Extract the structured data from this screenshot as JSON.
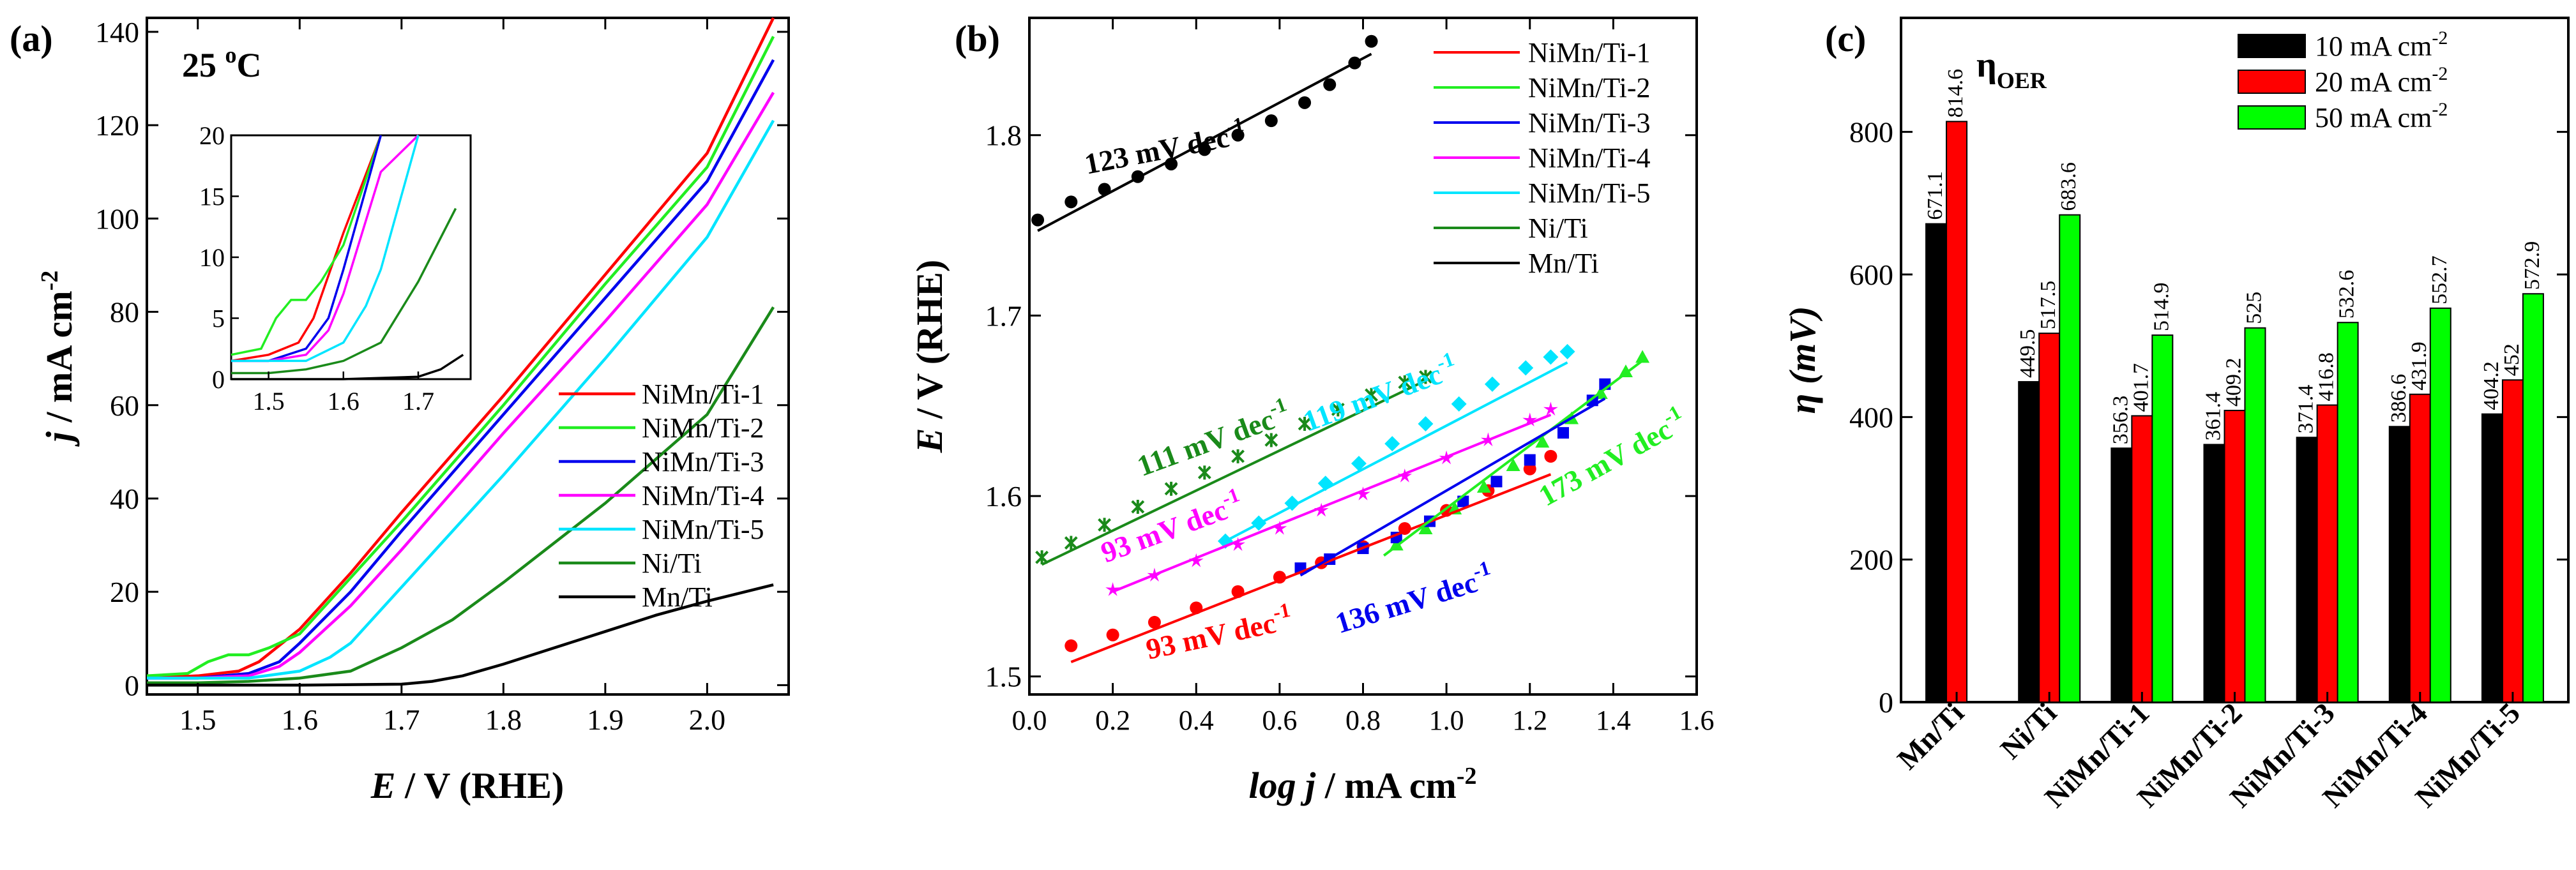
{
  "chart_data": [
    {
      "type": "line",
      "panel_label": "(a)",
      "annotation": {
        "base": "25 ",
        "sup": "o",
        "unit": "C"
      },
      "xlabel": {
        "italic": "E",
        "rest": " / V (RHE)"
      },
      "ylabel": {
        "italic": "j",
        "rest": " / mA cm",
        "sup": "-2"
      },
      "xlim": [
        1.45,
        2.08
      ],
      "ylim": [
        -2,
        143
      ],
      "xticks": [
        1.5,
        1.6,
        1.7,
        1.8,
        1.9,
        2.0
      ],
      "xtick_labels": [
        "1.5",
        "1.6",
        "1.7",
        "1.8",
        "1.9",
        "2.0"
      ],
      "yticks": [
        0,
        20,
        40,
        60,
        80,
        100,
        120,
        140
      ],
      "ytick_labels": [
        "0",
        "20",
        "40",
        "60",
        "80",
        "100",
        "120",
        "140"
      ],
      "legend_position": "bottom-right",
      "series": [
        {
          "name": "NiMn/Ti-1",
          "color": "#ff0000",
          "x": [
            1.45,
            1.5,
            1.54,
            1.56,
            1.6,
            1.65,
            1.7,
            1.8,
            1.9,
            2.0,
            2.065
          ],
          "y": [
            1.5,
            2,
            3,
            5,
            12,
            24,
            37,
            62,
            88,
            114,
            143
          ]
        },
        {
          "name": "NiMn/Ti-2",
          "color": "#22ee22",
          "x": [
            1.45,
            1.49,
            1.51,
            1.53,
            1.55,
            1.57,
            1.6,
            1.65,
            1.7,
            1.8,
            1.9,
            2.0,
            2.065
          ],
          "y": [
            2,
            2.5,
            5,
            6.5,
            6.5,
            8,
            11,
            23,
            35,
            60,
            86,
            111,
            139
          ]
        },
        {
          "name": "NiMn/Ti-3",
          "color": "#0000ee",
          "x": [
            1.45,
            1.5,
            1.55,
            1.58,
            1.6,
            1.65,
            1.7,
            1.8,
            1.9,
            2.0,
            2.065
          ],
          "y": [
            1.5,
            1.5,
            2.5,
            5,
            9,
            20,
            33,
            58,
            83,
            108,
            134
          ]
        },
        {
          "name": "NiMn/Ti-4",
          "color": "#ff00ff",
          "x": [
            1.45,
            1.5,
            1.55,
            1.58,
            1.6,
            1.65,
            1.7,
            1.8,
            1.9,
            2.0,
            2.065
          ],
          "y": [
            1.5,
            1.5,
            2,
            4,
            7,
            17,
            29,
            54,
            78,
            103,
            127
          ]
        },
        {
          "name": "NiMn/Ti-5",
          "color": "#00e5ff",
          "x": [
            1.45,
            1.5,
            1.55,
            1.6,
            1.63,
            1.65,
            1.7,
            1.8,
            1.9,
            2.0,
            2.065
          ],
          "y": [
            1.5,
            1.5,
            1.5,
            3,
            6,
            9,
            21,
            45,
            70,
            96,
            121
          ]
        },
        {
          "name": "Ni/Ti",
          "color": "#1a8a1a",
          "x": [
            1.45,
            1.5,
            1.55,
            1.6,
            1.65,
            1.7,
            1.75,
            1.8,
            1.9,
            2.0,
            2.065
          ],
          "y": [
            0.5,
            0.5,
            0.8,
            1.5,
            3,
            8,
            14,
            22,
            39,
            58,
            81
          ]
        },
        {
          "name": "Mn/Ti",
          "color": "#000000",
          "x": [
            1.45,
            1.6,
            1.7,
            1.73,
            1.76,
            1.8,
            1.85,
            1.9,
            1.95,
            2.0,
            2.065
          ],
          "y": [
            0,
            0,
            0.2,
            0.8,
            2,
            4.5,
            8,
            11.5,
            15,
            18,
            21.5
          ]
        }
      ],
      "inset": {
        "xlim": [
          1.45,
          1.77
        ],
        "ylim": [
          0,
          20
        ],
        "xticks": [
          1.5,
          1.6,
          1.7
        ],
        "xtick_labels": [
          "1.5",
          "1.6",
          "1.7"
        ],
        "yticks": [
          0,
          5,
          10,
          15,
          20
        ],
        "ytick_labels": [
          "0",
          "5",
          "10",
          "15",
          "20"
        ]
      }
    },
    {
      "type": "scatter",
      "panel_label": "(b)",
      "xlabel": {
        "italic": "log j",
        "rest": " / mA cm",
        "sup": "-2"
      },
      "ylabel": {
        "italic": "E",
        "rest": " / V (RHE)"
      },
      "xlim": [
        0.0,
        1.6
      ],
      "ylim": [
        1.49,
        1.865
      ],
      "xticks": [
        0.0,
        0.2,
        0.4,
        0.6,
        0.8,
        1.0,
        1.2,
        1.4,
        1.6
      ],
      "xtick_labels": [
        "0.0",
        "0.2",
        "0.4",
        "0.6",
        "0.8",
        "1.0",
        "1.2",
        "1.4",
        "1.6"
      ],
      "yticks": [
        1.5,
        1.6,
        1.7,
        1.8
      ],
      "ytick_labels": [
        "1.5",
        "1.6",
        "1.7",
        "1.8"
      ],
      "legend_position": "top-right",
      "legend": [
        {
          "name": "NiMn/Ti-1",
          "color": "#ff0000"
        },
        {
          "name": "NiMn/Ti-2",
          "color": "#22ee22"
        },
        {
          "name": "NiMn/Ti-3",
          "color": "#0000ee"
        },
        {
          "name": "NiMn/Ti-4",
          "color": "#ff00ff"
        },
        {
          "name": "NiMn/Ti-5",
          "color": "#00e5ff"
        },
        {
          "name": "Ni/Ti",
          "color": "#1a8a1a"
        },
        {
          "name": "Mn/Ti",
          "color": "#000000"
        }
      ],
      "series": [
        {
          "name": "Mn/Ti",
          "color": "#000000",
          "marker": "circle",
          "x": [
            0.02,
            0.1,
            0.18,
            0.26,
            0.34,
            0.42,
            0.5,
            0.58,
            0.66,
            0.72,
            0.78,
            0.82
          ],
          "y": [
            1.753,
            1.763,
            1.77,
            1.777,
            1.784,
            1.792,
            1.8,
            1.808,
            1.818,
            1.828,
            1.84,
            1.852
          ],
          "fit": {
            "x": [
              0.02,
              0.82
            ],
            "y": [
              1.747,
              1.845
            ]
          },
          "slope_label": "123 mV dec",
          "slope_sup": "-1",
          "label_anchor": {
            "x": 0.33,
            "y": 1.787
          },
          "label_rotation": -11
        },
        {
          "name": "NiMn/Ti-1",
          "color": "#ff0000",
          "marker": "circle",
          "x": [
            0.1,
            0.2,
            0.3,
            0.4,
            0.5,
            0.6,
            0.7,
            0.8,
            0.9,
            1.0,
            1.1,
            1.2,
            1.25
          ],
          "y": [
            1.517,
            1.523,
            1.53,
            1.538,
            1.547,
            1.555,
            1.563,
            1.572,
            1.582,
            1.592,
            1.603,
            1.615,
            1.622
          ],
          "fit": {
            "x": [
              0.1,
              1.25
            ],
            "y": [
              1.508,
              1.612
            ]
          },
          "slope_label": "93 mV dec",
          "slope_sup": "-1",
          "label_anchor": {
            "x": 0.46,
            "y": 1.518
          },
          "label_rotation": -12
        },
        {
          "name": "NiMn/Ti-2",
          "color": "#22ee22",
          "marker": "triangle",
          "x": [
            0.88,
            0.95,
            1.02,
            1.09,
            1.16,
            1.23,
            1.3,
            1.37,
            1.43,
            1.47
          ],
          "y": [
            1.573,
            1.582,
            1.593,
            1.605,
            1.617,
            1.63,
            1.643,
            1.657,
            1.669,
            1.677
          ],
          "fit": {
            "x": [
              0.85,
              1.47
            ],
            "y": [
              1.567,
              1.675
            ]
          },
          "slope_label": "173 mV dec",
          "slope_sup": "-1",
          "label_anchor": {
            "x": 1.41,
            "y": 1.616
          },
          "label_rotation": -29
        },
        {
          "name": "NiMn/Ti-3",
          "color": "#0000ee",
          "marker": "square",
          "x": [
            0.65,
            0.72,
            0.8,
            0.88,
            0.96,
            1.04,
            1.12,
            1.2,
            1.28,
            1.35,
            1.38
          ],
          "y": [
            1.56,
            1.565,
            1.571,
            1.577,
            1.586,
            1.597,
            1.608,
            1.62,
            1.635,
            1.653,
            1.662
          ],
          "fit": {
            "x": [
              0.65,
              1.38
            ],
            "y": [
              1.556,
              1.654
            ]
          },
          "slope_label": "136 mV dec",
          "slope_sup": "-1",
          "label_anchor": {
            "x": 0.93,
            "y": 1.537
          },
          "label_rotation": -17
        },
        {
          "name": "NiMn/Ti-4",
          "color": "#ff00ff",
          "marker": "star",
          "x": [
            0.2,
            0.3,
            0.4,
            0.5,
            0.6,
            0.7,
            0.8,
            0.9,
            1.0,
            1.1,
            1.2,
            1.25
          ],
          "y": [
            1.548,
            1.556,
            1.564,
            1.573,
            1.582,
            1.592,
            1.601,
            1.611,
            1.621,
            1.631,
            1.642,
            1.648
          ],
          "fit": {
            "x": [
              0.2,
              1.25
            ],
            "y": [
              1.547,
              1.645
            ]
          },
          "slope_label": "93 mV dec",
          "slope_sup": "-1",
          "label_anchor": {
            "x": 0.35,
            "y": 1.577
          },
          "label_rotation": -20
        },
        {
          "name": "NiMn/Ti-5",
          "color": "#00e5ff",
          "marker": "diamond",
          "x": [
            0.47,
            0.55,
            0.63,
            0.71,
            0.79,
            0.87,
            0.95,
            1.03,
            1.11,
            1.19,
            1.25,
            1.29
          ],
          "y": [
            1.575,
            1.585,
            1.596,
            1.607,
            1.618,
            1.629,
            1.64,
            1.651,
            1.662,
            1.671,
            1.677,
            1.68
          ],
          "fit": {
            "x": [
              0.47,
              1.29
            ],
            "y": [
              1.575,
              1.674
            ]
          },
          "slope_label": "119 mV dec",
          "slope_sup": "-1",
          "label_anchor": {
            "x": 0.85,
            "y": 1.651
          },
          "label_rotation": -20
        },
        {
          "name": "Ni/Ti",
          "color": "#1a8a1a",
          "marker": "x",
          "x": [
            0.03,
            0.1,
            0.18,
            0.26,
            0.34,
            0.42,
            0.5,
            0.58,
            0.66,
            0.74,
            0.82,
            0.9,
            0.95
          ],
          "y": [
            1.566,
            1.574,
            1.584,
            1.594,
            1.604,
            1.613,
            1.622,
            1.631,
            1.64,
            1.648,
            1.656,
            1.663,
            1.666
          ],
          "fit": {
            "x": [
              0.03,
              0.95
            ],
            "y": [
              1.562,
              1.664
            ]
          },
          "slope_label": "111 mV dec",
          "slope_sup": "-1",
          "label_anchor": {
            "x": 0.45,
            "y": 1.626
          },
          "label_rotation": -20
        }
      ]
    },
    {
      "type": "bar",
      "panel_label": "(c)",
      "title": {
        "base": "η",
        "sub": "OER"
      },
      "ylabel": {
        "italic": "η (mV)"
      },
      "ylim": [
        0,
        960
      ],
      "yticks": [
        0,
        200,
        400,
        600,
        800
      ],
      "ytick_labels": [
        "0",
        "200",
        "400",
        "600",
        "800"
      ],
      "categories": [
        "Mn/Ti",
        "Ni/Ti",
        "NiMn/Ti-1",
        "NiMn/Ti-2",
        "NiMn/Ti-3",
        "NiMn/Ti-4",
        "NiMn/Ti-5"
      ],
      "legend_position": "top-right",
      "series": [
        {
          "name": "10 mA cm",
          "sup": "-2",
          "color": "#000000",
          "values": [
            671.1,
            449.5,
            356.3,
            361.4,
            371.4,
            386.6,
            404.2
          ],
          "labels": [
            "671.1",
            "449.5",
            "356.3",
            "361.4",
            "371.4",
            "386.6",
            "404.2"
          ]
        },
        {
          "name": "20 mA cm",
          "sup": "-2",
          "color": "#ff0000",
          "values": [
            814.6,
            517.5,
            401.7,
            409.2,
            416.8,
            431.9,
            452
          ],
          "labels": [
            "814.6",
            "517.5",
            "401.7",
            "409.2",
            "416.8",
            "431.9",
            "452"
          ]
        },
        {
          "name": "50 mA cm",
          "sup": "-2",
          "color": "#00ff00",
          "values": [
            null,
            683.6,
            514.9,
            525,
            532.6,
            552.7,
            572.9
          ],
          "labels": [
            "",
            "683.6",
            "514.9",
            "525",
            "532.6",
            "552.7",
            "572.9"
          ]
        }
      ]
    }
  ]
}
